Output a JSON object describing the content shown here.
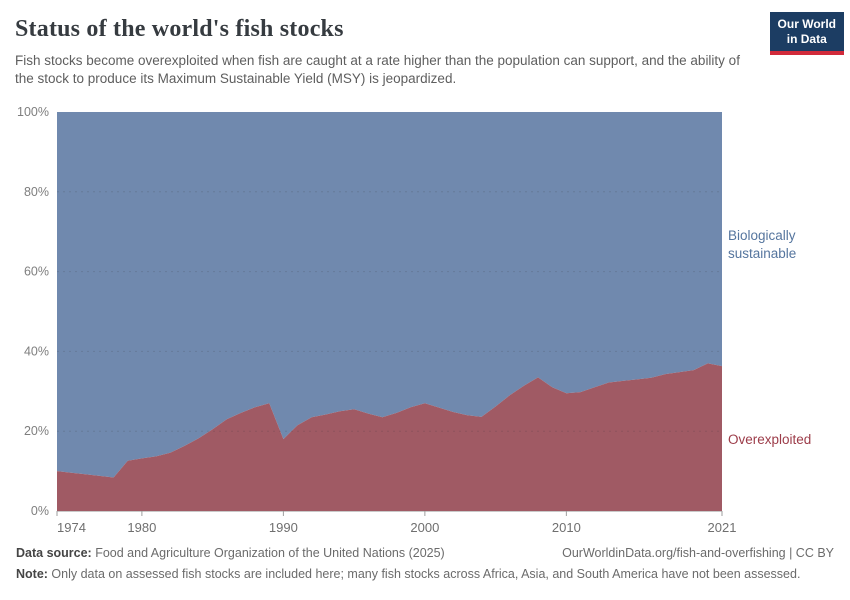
{
  "header": {
    "title": "Status of the world's fish stocks",
    "subtitle": "Fish stocks become overexploited when fish are caught at a rate higher than the population can support, and the ability of the stock to produce its Maximum Sustainable Yield (MSY) is jeopardized.",
    "logo": {
      "line1": "Our World",
      "line2": "in Data",
      "bg_color": "#1c3d63",
      "accent_color": "#d12a3a"
    }
  },
  "labels": {
    "sustainable": "Biologically sustainable",
    "overexploited": "Overexploited",
    "sustainable_color": "#55759e",
    "overexploited_color": "#9c3c49"
  },
  "chart_data": {
    "type": "area",
    "stacked": true,
    "title": "Status of the world's fish stocks",
    "xlabel": "",
    "ylabel": "",
    "xlim": [
      1974,
      2021
    ],
    "ylim": [
      0,
      100
    ],
    "x_ticks": [
      1974,
      1980,
      1990,
      2000,
      2010,
      2021
    ],
    "y_ticks": [
      0,
      20,
      40,
      60,
      80,
      100
    ],
    "y_tick_suffix": "%",
    "grid": "dashed-horizontal",
    "legend_position": "right-of-plot",
    "x": [
      1974,
      1975,
      1976,
      1977,
      1978,
      1979,
      1980,
      1981,
      1982,
      1983,
      1984,
      1985,
      1986,
      1987,
      1988,
      1989,
      1990,
      1991,
      1992,
      1993,
      1994,
      1995,
      1996,
      1997,
      1998,
      1999,
      2000,
      2001,
      2002,
      2003,
      2004,
      2005,
      2006,
      2007,
      2008,
      2009,
      2010,
      2011,
      2012,
      2013,
      2014,
      2015,
      2016,
      2017,
      2018,
      2019,
      2020,
      2021
    ],
    "series": [
      {
        "name": "Overexploited",
        "color": "#a05a64",
        "values": [
          10.0,
          9.6,
          9.2,
          8.8,
          8.4,
          12.6,
          13.2,
          13.7,
          14.6,
          16.3,
          18.2,
          20.5,
          23.0,
          24.6,
          26.0,
          27.0,
          18.0,
          21.5,
          23.5,
          24.2,
          25.0,
          25.5,
          24.4,
          23.5,
          24.6,
          26.0,
          27.0,
          25.9,
          24.8,
          24.0,
          23.6,
          26.2,
          29.0,
          31.4,
          33.5,
          31.0,
          29.5,
          29.8,
          31.0,
          32.2,
          32.6,
          33.0,
          33.4,
          34.3,
          34.8,
          35.3,
          37.0,
          36.3
        ]
      },
      {
        "name": "Biologically sustainable",
        "color": "#7089ae",
        "values": [
          90.0,
          90.4,
          90.8,
          91.2,
          91.6,
          87.4,
          86.8,
          86.3,
          85.4,
          83.7,
          81.8,
          79.5,
          77.0,
          75.4,
          74.0,
          73.0,
          82.0,
          78.5,
          76.5,
          75.8,
          75.0,
          74.5,
          75.6,
          76.5,
          75.4,
          74.0,
          73.0,
          74.1,
          75.2,
          76.0,
          76.4,
          73.8,
          71.0,
          68.6,
          66.5,
          69.0,
          70.5,
          70.2,
          69.0,
          67.8,
          67.4,
          67.0,
          66.6,
          65.7,
          65.2,
          64.7,
          63.0,
          63.7
        ]
      }
    ]
  },
  "footer": {
    "source_label": "Data source:",
    "source_text": " Food and Agriculture Organization of the United Nations (2025)",
    "link_text": "OurWorldinData.org/fish-and-overfishing | CC BY",
    "note_label": "Note:",
    "note_text": " Only data on assessed fish stocks are included here; many fish stocks across Africa, Asia, and South America have not been assessed."
  }
}
